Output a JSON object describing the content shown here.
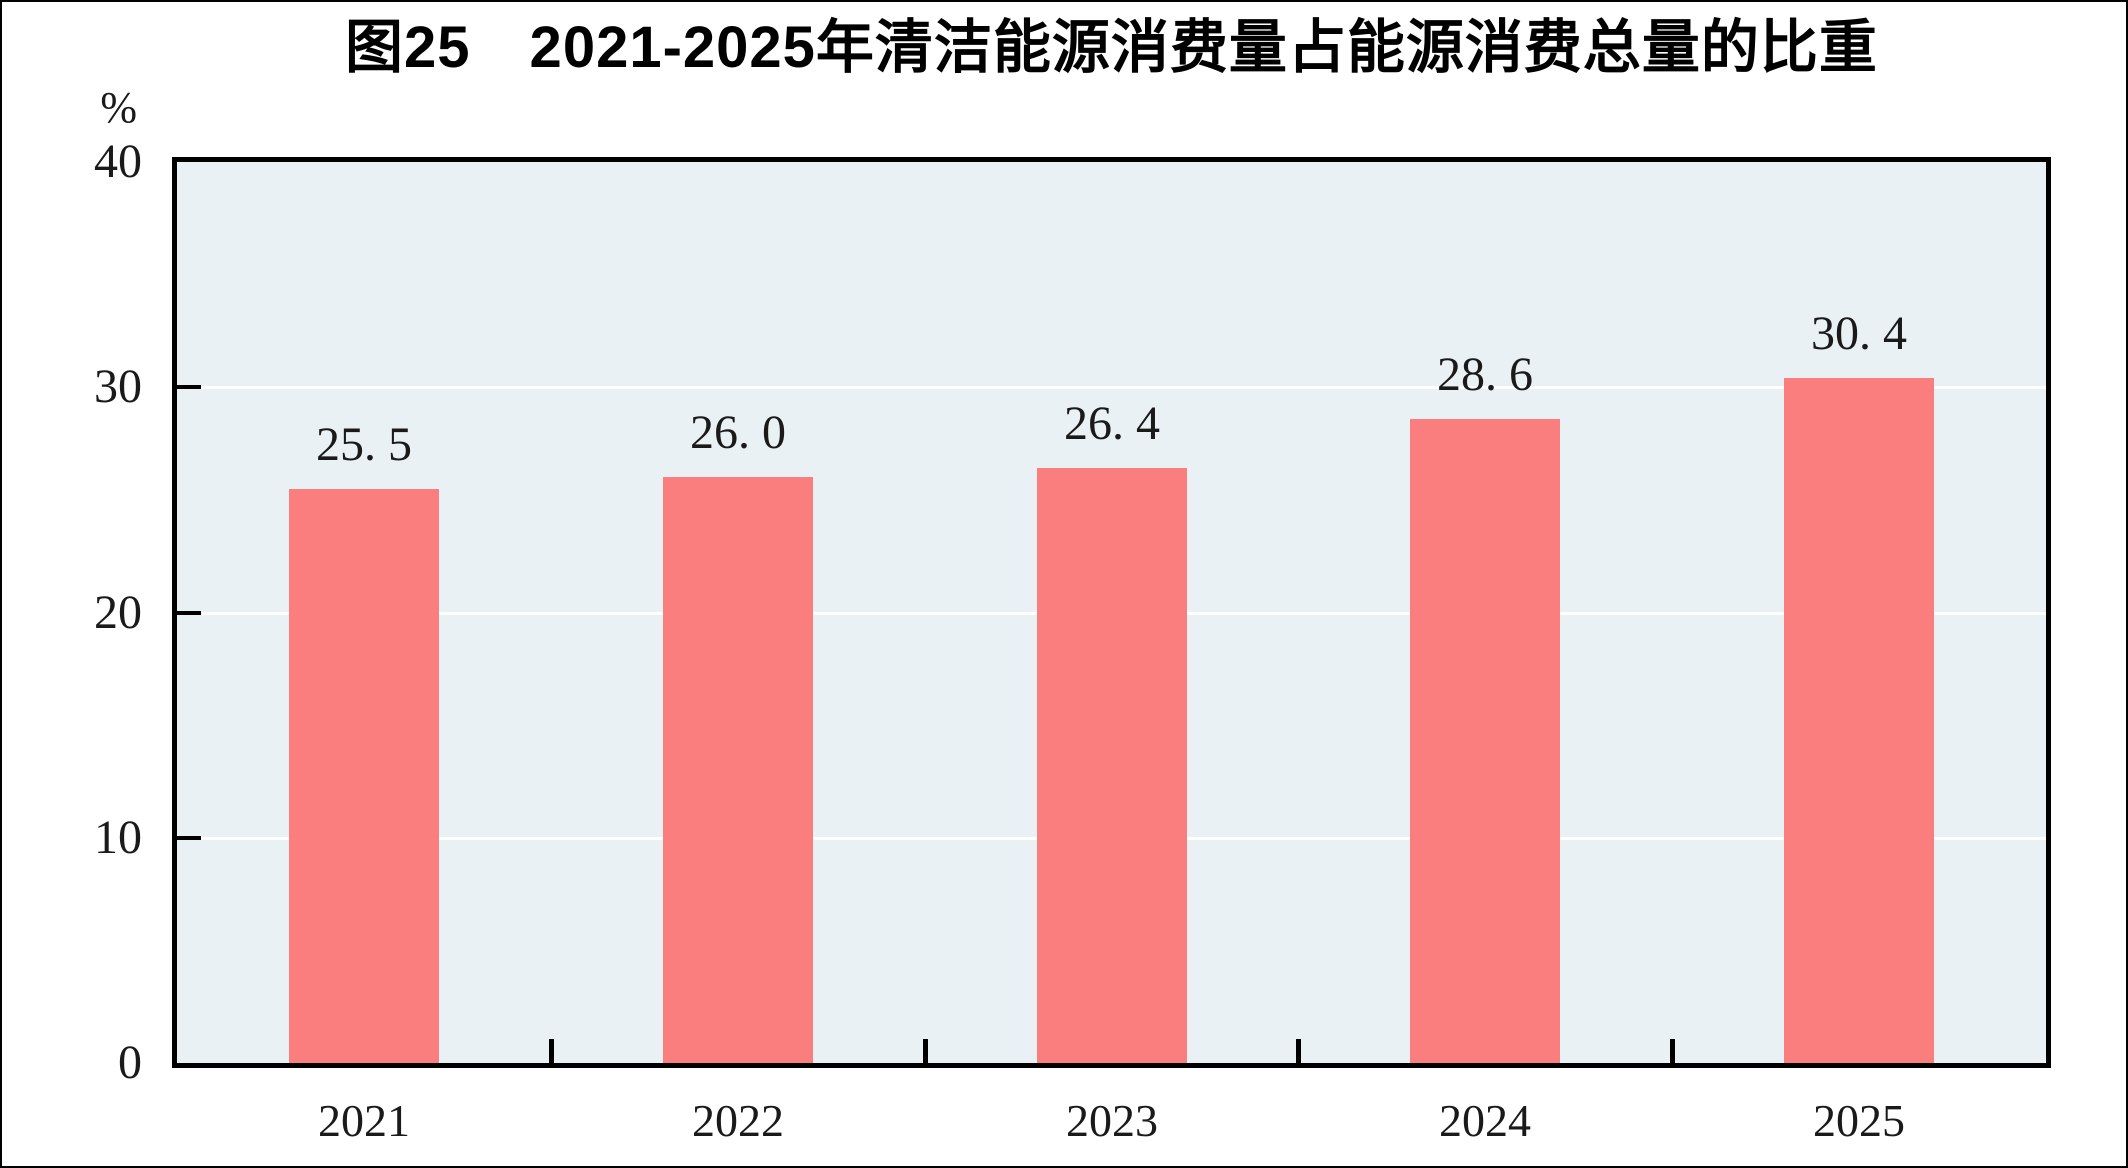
{
  "chart_data": {
    "type": "bar",
    "title": "图25　2021-2025年清洁能源消费量占能源消费总量的比重",
    "unit_label": "%",
    "xlabel": "",
    "ylabel": "%",
    "categories": [
      "2021",
      "2022",
      "2023",
      "2024",
      "2025"
    ],
    "values": [
      25.5,
      26.0,
      26.4,
      28.6,
      30.4
    ],
    "value_labels": [
      "25. 5",
      "26. 0",
      "26. 4",
      "28. 6",
      "30. 4"
    ],
    "ylim": [
      0,
      40
    ],
    "yticks": [
      0,
      10,
      20,
      30,
      40
    ],
    "ytick_labels": [
      "0",
      "10",
      "20",
      "30",
      "40"
    ],
    "grid": "horizontal",
    "legend": "none",
    "colors": {
      "bar": "#FB7E7E",
      "plot_background": "#E9F1F5",
      "gridline": "#FFFFFF",
      "axis": "#000000",
      "text": "#1A1A1A"
    }
  }
}
